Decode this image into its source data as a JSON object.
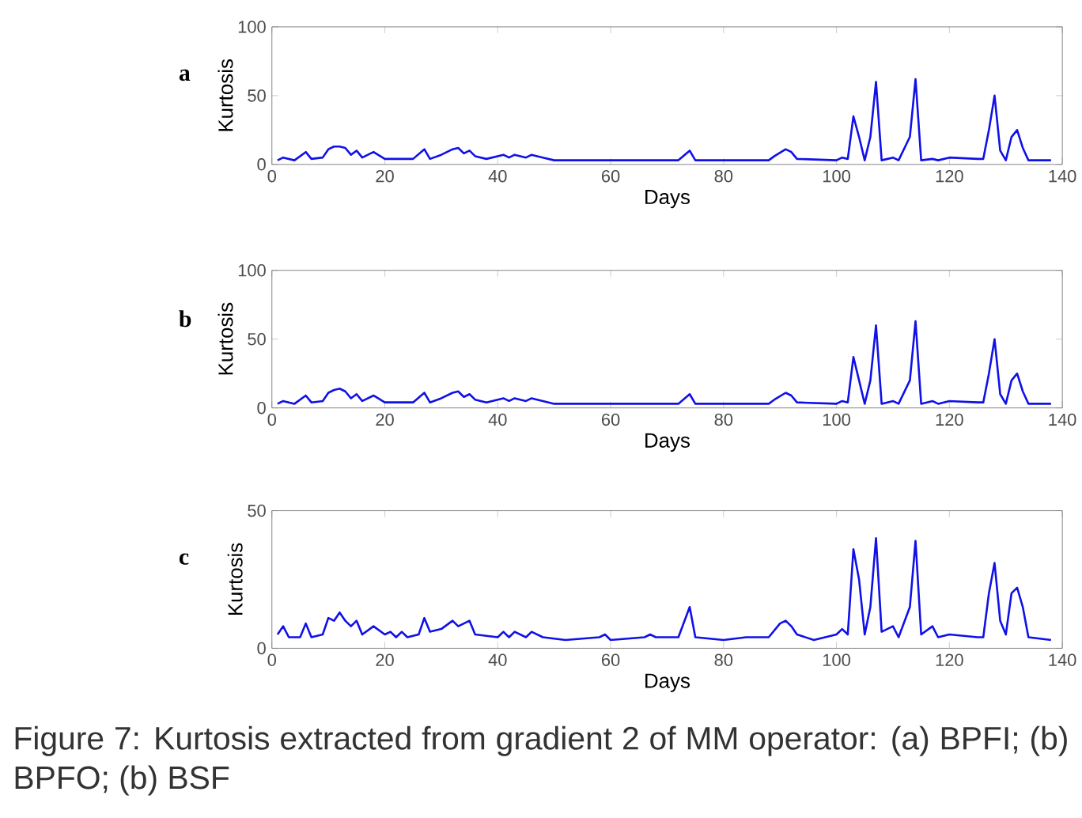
{
  "chart_data": [
    {
      "type": "line",
      "title": "a",
      "xlabel": "Days",
      "ylabel": "Kurtosis",
      "xlim": [
        0,
        140
      ],
      "ylim": [
        0,
        100
      ],
      "xticks": [
        0,
        20,
        40,
        60,
        80,
        100,
        120,
        140
      ],
      "yticks": [
        0,
        50,
        100
      ],
      "grid": false,
      "series": [
        {
          "color": "#1010e8",
          "x": [
            1,
            2,
            4,
            6,
            7,
            9,
            10,
            11,
            12,
            13,
            14,
            15,
            16,
            18,
            20,
            25,
            27,
            28,
            30,
            32,
            33,
            34,
            35,
            36,
            38,
            41,
            42,
            43,
            45,
            46,
            48,
            50,
            60,
            70,
            72,
            74,
            75,
            88,
            89,
            91,
            92,
            93,
            100,
            101,
            102,
            103,
            104,
            105,
            106,
            107,
            108,
            110,
            111,
            113,
            114,
            115,
            117,
            118,
            120,
            125,
            126,
            127,
            128,
            129,
            130,
            131,
            132,
            133,
            134,
            138
          ],
          "values": [
            3,
            5,
            3,
            9,
            4,
            5,
            11,
            13,
            13,
            12,
            7,
            10,
            5,
            9,
            4,
            4,
            11,
            4,
            7,
            11,
            12,
            8,
            10,
            6,
            4,
            7,
            5,
            7,
            5,
            7,
            5,
            3,
            3,
            3,
            3,
            10,
            3,
            3,
            6,
            11,
            9,
            4,
            3,
            5,
            4,
            35,
            20,
            3,
            20,
            60,
            3,
            5,
            3,
            20,
            62,
            3,
            4,
            3,
            5,
            4,
            4,
            25,
            50,
            10,
            3,
            20,
            25,
            12,
            3,
            3
          ]
        }
      ]
    },
    {
      "type": "line",
      "title": "b",
      "xlabel": "Days",
      "ylabel": "Kurtosis",
      "xlim": [
        0,
        140
      ],
      "ylim": [
        0,
        100
      ],
      "xticks": [
        0,
        20,
        40,
        60,
        80,
        100,
        120,
        140
      ],
      "yticks": [
        0,
        50,
        100
      ],
      "grid": false,
      "series": [
        {
          "color": "#1010e8",
          "x": [
            1,
            2,
            4,
            6,
            7,
            9,
            10,
            11,
            12,
            13,
            14,
            15,
            16,
            18,
            20,
            25,
            27,
            28,
            30,
            32,
            33,
            34,
            35,
            36,
            38,
            41,
            42,
            43,
            45,
            46,
            48,
            50,
            60,
            70,
            72,
            74,
            75,
            88,
            89,
            91,
            92,
            93,
            100,
            101,
            102,
            103,
            104,
            105,
            106,
            107,
            108,
            110,
            111,
            113,
            114,
            115,
            117,
            118,
            120,
            125,
            126,
            127,
            128,
            129,
            130,
            131,
            132,
            133,
            134,
            138
          ],
          "values": [
            3,
            5,
            3,
            9,
            4,
            5,
            11,
            13,
            14,
            12,
            7,
            10,
            5,
            9,
            4,
            4,
            11,
            4,
            7,
            11,
            12,
            8,
            10,
            6,
            4,
            7,
            5,
            7,
            5,
            7,
            5,
            3,
            3,
            3,
            3,
            10,
            3,
            3,
            6,
            11,
            9,
            4,
            3,
            5,
            4,
            37,
            20,
            3,
            20,
            60,
            3,
            5,
            3,
            20,
            63,
            3,
            5,
            3,
            5,
            4,
            4,
            25,
            50,
            10,
            3,
            20,
            25,
            12,
            3,
            3
          ]
        }
      ]
    },
    {
      "type": "line",
      "title": "c",
      "xlabel": "Days",
      "ylabel": "Kurtosis",
      "xlim": [
        0,
        140
      ],
      "ylim": [
        0,
        50
      ],
      "xticks": [
        0,
        20,
        40,
        60,
        80,
        100,
        120,
        140
      ],
      "yticks": [
        0,
        50
      ],
      "grid": false,
      "annotations": [
        "Figure 7: Kurtosis extracted from gradient 2 of MM operator: (a) BPFI; (b) BPFO; (b) BSF"
      ],
      "series": [
        {
          "color": "#1010e8",
          "x": [
            1,
            2,
            3,
            5,
            6,
            7,
            9,
            10,
            11,
            12,
            13,
            14,
            15,
            16,
            18,
            20,
            21,
            22,
            23,
            24,
            26,
            27,
            28,
            30,
            32,
            33,
            35,
            36,
            40,
            41,
            42,
            43,
            45,
            46,
            48,
            52,
            58,
            59,
            60,
            66,
            67,
            68,
            72,
            74,
            75,
            80,
            84,
            88,
            90,
            91,
            92,
            93,
            96,
            100,
            101,
            102,
            103,
            104,
            105,
            106,
            107,
            108,
            110,
            111,
            113,
            114,
            115,
            117,
            118,
            120,
            125,
            126,
            127,
            128,
            129,
            130,
            131,
            132,
            133,
            134,
            138
          ],
          "values": [
            5,
            8,
            4,
            4,
            9,
            4,
            5,
            11,
            10,
            13,
            10,
            8,
            10,
            5,
            8,
            5,
            6,
            4,
            6,
            4,
            5,
            11,
            6,
            7,
            10,
            8,
            10,
            5,
            4,
            6,
            4,
            6,
            4,
            6,
            4,
            3,
            4,
            5,
            3,
            4,
            5,
            4,
            4,
            15,
            4,
            3,
            4,
            4,
            9,
            10,
            8,
            5,
            3,
            5,
            7,
            5,
            36,
            25,
            5,
            15,
            40,
            6,
            8,
            4,
            15,
            39,
            5,
            8,
            4,
            5,
            4,
            4,
            20,
            31,
            10,
            5,
            20,
            22,
            15,
            4,
            3
          ]
        }
      ]
    }
  ]
}
